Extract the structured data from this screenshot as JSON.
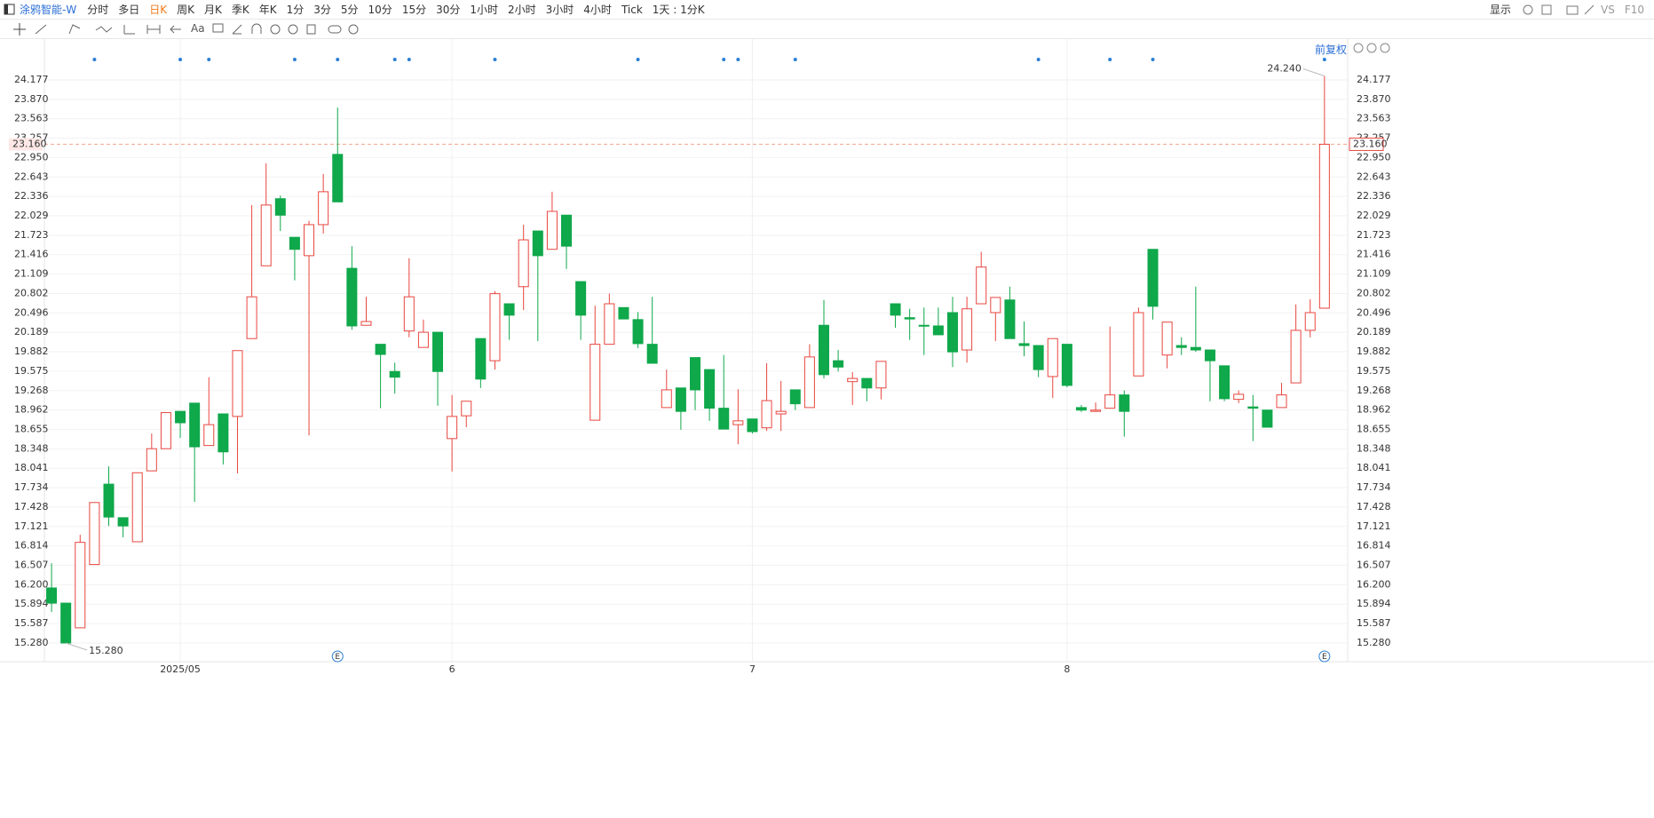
{
  "toolbar": {
    "symbol": "涂鸦智能-W",
    "periods": [
      "分时",
      "多日",
      "日K",
      "周K",
      "月K",
      "季K",
      "年K",
      "1分",
      "3分",
      "5分",
      "10分",
      "15分",
      "30分",
      "1小时",
      "2小时",
      "3小时",
      "4小时",
      "Tick",
      "1天 : 1分K"
    ],
    "display": "显示",
    "compare": "VS",
    "f10": "F10",
    "text_tool": "Aa",
    "adjust": "前复权"
  },
  "chart_data": {
    "type": "candlestick",
    "categories": [
      null,
      null,
      null,
      null,
      null,
      null,
      null,
      null,
      null,
      "2025/05",
      null,
      null,
      null,
      null,
      null,
      null,
      null,
      null,
      null,
      null,
      null,
      null,
      null,
      null,
      null,
      null,
      null,
      null,
      "6",
      null,
      null,
      null,
      null,
      null,
      null,
      null,
      null,
      null,
      null,
      null,
      null,
      null,
      null,
      null,
      null,
      null,
      null,
      null,
      null,
      "7",
      null,
      null,
      null,
      null,
      null,
      null,
      null,
      null,
      null,
      null,
      null,
      null,
      null,
      null,
      null,
      null,
      null,
      null,
      null,
      null,
      null,
      "8",
      null,
      null,
      null,
      null,
      null,
      null,
      null,
      null,
      null,
      null,
      null,
      null,
      null,
      null,
      null,
      null,
      null,
      null
    ],
    "open": [
      16.15,
      15.91,
      15.52,
      16.52,
      17.79,
      17.26,
      16.88,
      18.0,
      18.35,
      18.94,
      19.07,
      18.4,
      18.9,
      18.86,
      20.09,
      21.24,
      22.3,
      21.69,
      21.4,
      21.89,
      23.0,
      21.2,
      20.3,
      20.0,
      19.57,
      20.21,
      19.95,
      20.19,
      18.51,
      18.87,
      20.09,
      19.74,
      20.64,
      20.91,
      21.79,
      21.5,
      22.04,
      20.99,
      18.8,
      20.0,
      20.58,
      20.39,
      20.0,
      19.0,
      19.31,
      19.79,
      19.6,
      18.99,
      18.73,
      18.82,
      18.68,
      18.9,
      19.28,
      19.0,
      20.3,
      19.74,
      19.41,
      19.46,
      19.31,
      20.64,
      20.42,
      20.3,
      20.29,
      20.5,
      19.91,
      20.64,
      20.5,
      20.7,
      20.01,
      19.98,
      19.49,
      20.0,
      19.0,
      18.94,
      18.99,
      19.2,
      19.5,
      21.5,
      19.83,
      19.98,
      19.95,
      19.91,
      19.66,
      19.13,
      19.01,
      18.96,
      19.0,
      19.39,
      20.22,
      20.57
    ],
    "high": [
      16.54,
      15.91,
      16.99,
      17.5,
      18.07,
      17.26,
      17.97,
      18.59,
      18.92,
      18.94,
      19.07,
      19.48,
      18.9,
      19.9,
      22.2,
      22.86,
      22.35,
      21.69,
      21.95,
      22.69,
      23.74,
      21.55,
      20.75,
      20.0,
      19.71,
      21.36,
      20.39,
      20.19,
      19.2,
      19.1,
      20.09,
      20.84,
      20.64,
      21.89,
      21.79,
      22.41,
      22.04,
      20.99,
      20.61,
      20.8,
      20.58,
      20.51,
      20.75,
      19.6,
      19.31,
      19.79,
      19.6,
      19.83,
      19.29,
      18.82,
      19.7,
      19.42,
      19.28,
      20.0,
      20.7,
      19.91,
      19.56,
      19.46,
      19.73,
      20.64,
      20.56,
      20.58,
      20.58,
      20.75,
      20.75,
      21.46,
      20.74,
      20.91,
      20.36,
      19.98,
      20.09,
      20.0,
      19.04,
      19.08,
      20.28,
      19.27,
      20.58,
      21.5,
      20.35,
      20.11,
      20.91,
      19.91,
      19.66,
      19.27,
      19.2,
      18.96,
      19.39,
      20.63,
      20.71,
      24.24
    ],
    "low": [
      15.77,
      15.28,
      15.52,
      16.52,
      17.13,
      16.95,
      16.88,
      18.0,
      18.35,
      18.52,
      17.51,
      18.4,
      18.1,
      17.96,
      20.09,
      21.24,
      21.79,
      21.01,
      18.56,
      21.75,
      22.25,
      20.23,
      20.3,
      18.99,
      19.22,
      20.11,
      19.95,
      19.03,
      17.99,
      18.69,
      19.31,
      19.6,
      20.07,
      20.54,
      20.05,
      21.5,
      21.19,
      20.07,
      18.8,
      20.0,
      20.4,
      19.94,
      19.7,
      19.0,
      18.65,
      18.96,
      18.79,
      18.66,
      18.42,
      18.59,
      18.63,
      18.63,
      18.96,
      19.0,
      19.46,
      19.57,
      19.04,
      19.1,
      19.13,
      20.26,
      20.07,
      19.83,
      20.15,
      19.64,
      19.71,
      20.64,
      20.05,
      20.09,
      19.81,
      19.48,
      19.15,
      19.32,
      18.93,
      18.93,
      18.99,
      18.54,
      19.5,
      20.39,
      19.62,
      19.83,
      19.88,
      19.1,
      19.1,
      19.07,
      18.47,
      18.69,
      19.0,
      19.39,
      20.11,
      20.57
    ],
    "close": [
      15.91,
      15.28,
      16.87,
      17.5,
      17.27,
      17.13,
      17.97,
      18.35,
      18.92,
      18.76,
      18.38,
      18.73,
      18.3,
      19.9,
      20.75,
      22.2,
      22.04,
      21.5,
      21.89,
      22.41,
      22.25,
      20.29,
      20.36,
      19.84,
      19.48,
      20.75,
      20.19,
      19.57,
      18.86,
      19.1,
      19.45,
      20.8,
      20.46,
      21.65,
      21.4,
      22.1,
      21.55,
      20.46,
      20.0,
      20.64,
      20.4,
      20.01,
      19.7,
      19.28,
      18.94,
      19.28,
      18.99,
      18.66,
      18.79,
      18.62,
      19.11,
      18.94,
      19.06,
      19.8,
      19.52,
      19.64,
      19.46,
      19.31,
      19.73,
      20.46,
      20.4,
      20.29,
      20.15,
      19.88,
      20.56,
      21.22,
      20.74,
      20.09,
      19.98,
      19.6,
      20.09,
      19.35,
      18.96,
      18.96,
      19.2,
      18.94,
      20.5,
      20.6,
      20.35,
      19.95,
      19.91,
      19.74,
      19.14,
      19.21,
      18.99,
      18.69,
      19.2,
      20.22,
      20.5,
      23.16
    ],
    "up_color": "#e8463f",
    "down_color": "#0fa84a",
    "ylim": [
      14.985,
      24.822
    ],
    "yticks": [
      {
        "value": 15.28,
        "label": "15.280"
      },
      15.587,
      15.894,
      {
        "value": 16.2,
        "label": "16.200"
      },
      16.507,
      16.814,
      17.121,
      17.428,
      17.734,
      18.041,
      18.348,
      18.655,
      18.962,
      19.268,
      19.575,
      19.882,
      20.189,
      20.496,
      20.802,
      21.109,
      21.416,
      21.723,
      22.029,
      22.336,
      22.643,
      {
        "value": 22.95,
        "label": "22.950"
      },
      23.257,
      23.563,
      {
        "value": 23.87,
        "label": "23.870"
      },
      24.177
    ],
    "grid": true,
    "last_price": {
      "value": 23.16,
      "label": "23.160"
    },
    "max_marker": {
      "value": 24.24,
      "label": "24.240"
    },
    "min_marker": {
      "value": 15.28,
      "label": "15.280"
    },
    "event_labels": [
      "E",
      "E"
    ]
  }
}
